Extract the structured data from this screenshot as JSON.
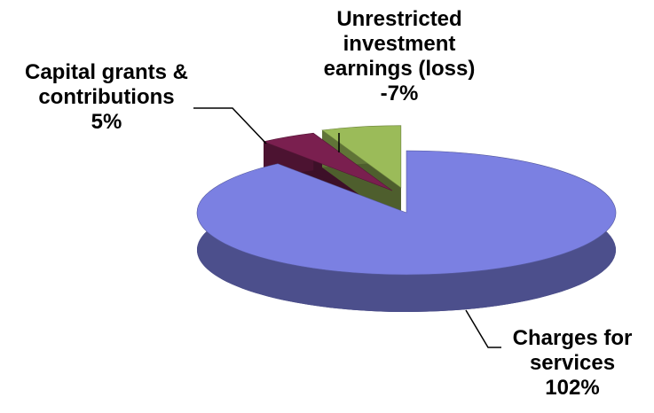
{
  "chart_data": {
    "type": "pie",
    "categories": [
      "Charges for services",
      "Capital grants & contributions",
      "Unrestricted investment earnings (loss)"
    ],
    "values": [
      102,
      5,
      -7
    ],
    "value_labels": [
      "102%",
      "5%",
      "-7%"
    ],
    "colors": [
      "#7b80e2",
      "#7a1f4f",
      "#9bbb59"
    ]
  }
}
